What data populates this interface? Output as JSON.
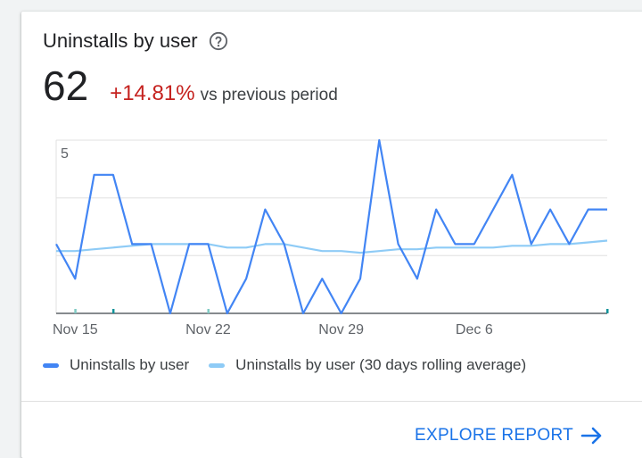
{
  "card": {
    "title": "Uninstalls by user",
    "metric": "62",
    "change": "+14.81%",
    "compare": "vs previous period",
    "explore_label": "EXPLORE REPORT"
  },
  "colors": {
    "primary_series": "#4285f4",
    "rolling_series": "#8ecbf6",
    "change_negative": "#c5221f",
    "link": "#1a73e8"
  },
  "icons": {
    "help": "help-circle-icon",
    "arrow": "arrow-right-icon"
  },
  "chart_data": {
    "type": "line",
    "x_tick_labels": [
      "Nov 15",
      "Nov 22",
      "Nov 29",
      "Dec 6"
    ],
    "y_tick_labels": [
      "5"
    ],
    "ylim": [
      0,
      5
    ],
    "grid": true,
    "legend_position": "bottom",
    "series": [
      {
        "name": "Uninstalls by user",
        "values": [
          2,
          1,
          4,
          4,
          2,
          2,
          0,
          2,
          2,
          0,
          1,
          3,
          2,
          0,
          1,
          0,
          1,
          5,
          2,
          1,
          3,
          2,
          2,
          3,
          4,
          2,
          3,
          2,
          3,
          3
        ]
      },
      {
        "name": "Uninstalls by user (30 days rolling average)",
        "values": [
          1.8,
          1.8,
          1.85,
          1.9,
          1.95,
          2.0,
          2.0,
          2.0,
          2.0,
          1.9,
          1.9,
          2.0,
          2.0,
          1.9,
          1.8,
          1.8,
          1.75,
          1.8,
          1.85,
          1.85,
          1.9,
          1.9,
          1.9,
          1.9,
          1.95,
          1.95,
          2.0,
          2.0,
          2.05,
          2.1
        ]
      }
    ]
  }
}
